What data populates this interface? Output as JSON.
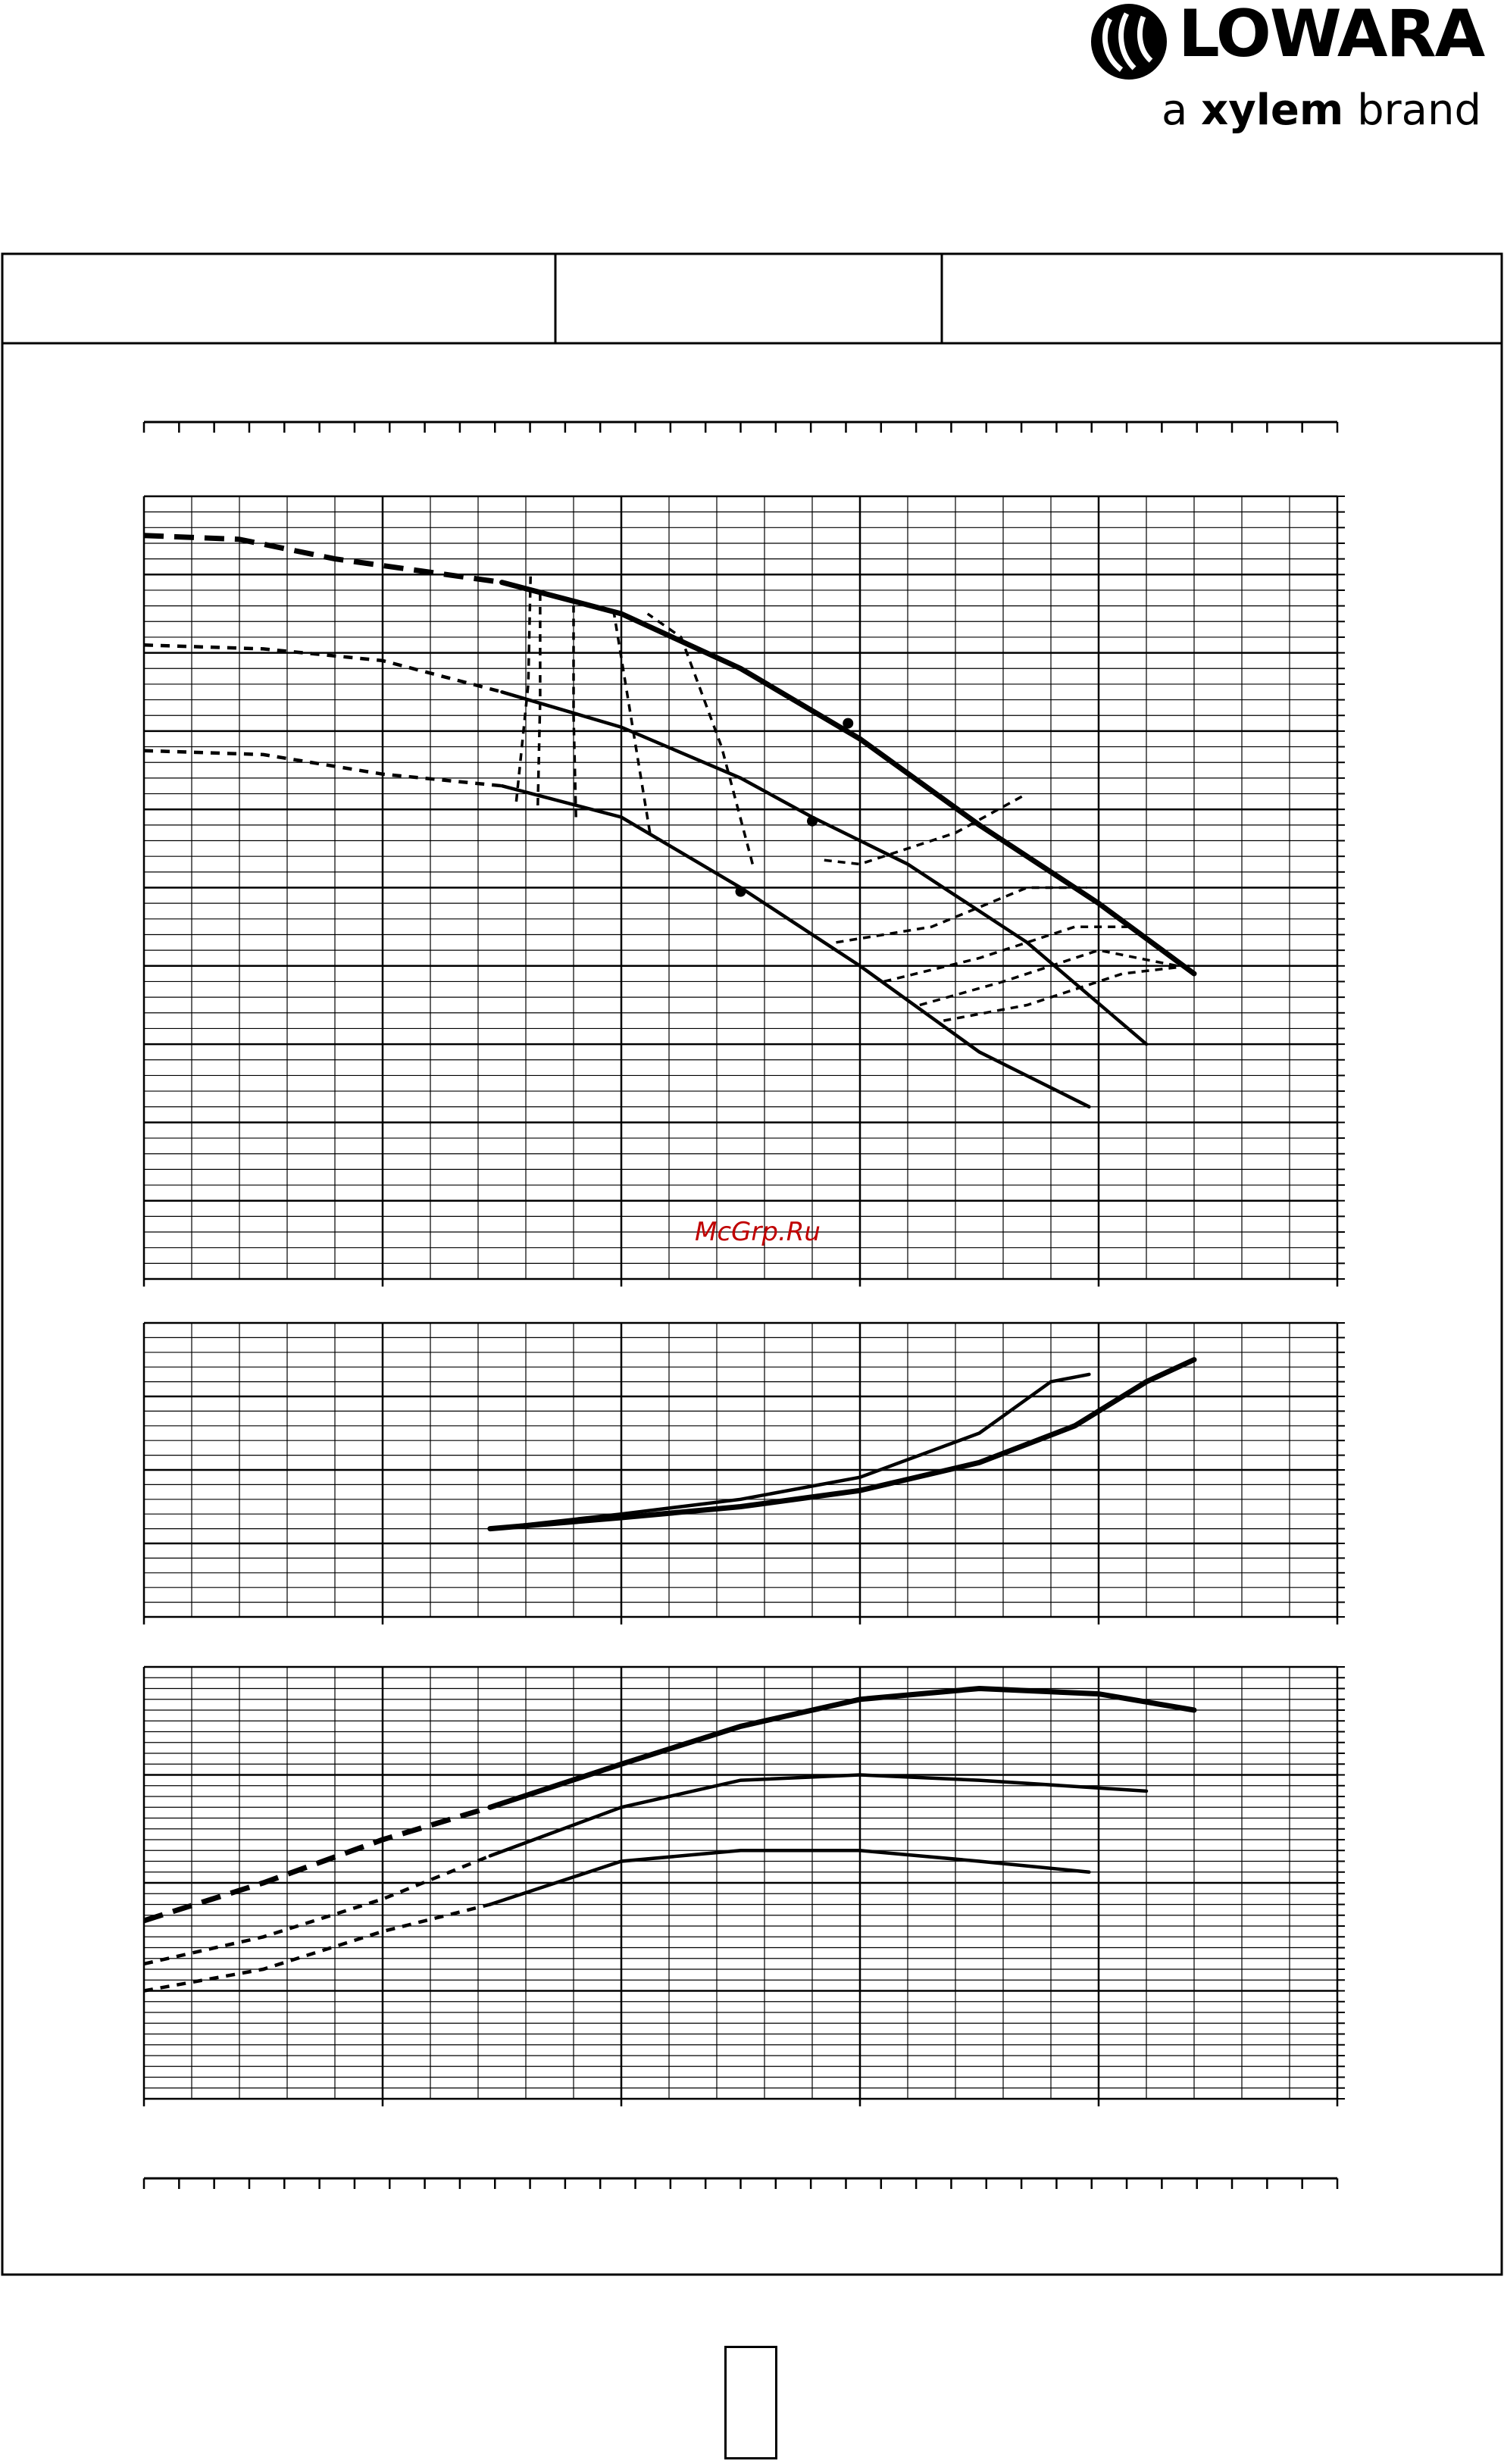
{
  "brand": {
    "name": "LOWARA",
    "tagline_prefix": "a",
    "tagline_brand": "xylem",
    "tagline_suffix": "brand",
    "logo_icon": "lowara-drop-icon"
  },
  "watermark": "McGrp.Ru",
  "header_cells": [
    "",
    "",
    ""
  ],
  "page_number": "",
  "colors": {
    "ink": "#000000",
    "watermark": "#c00000",
    "background": "#ffffff"
  },
  "chart_data": [
    {
      "type": "line",
      "panel": "head",
      "title": "",
      "xlabel": "",
      "ylabel": "",
      "xlim": [
        0,
        50
      ],
      "ylim": [
        0,
        10
      ],
      "grid": true,
      "series": [
        {
          "style": "thick",
          "dashed": [
            [
              0,
              9.5
            ],
            [
              4,
              9.45
            ],
            [
              8,
              9.2
            ],
            [
              15,
              8.9
            ]
          ],
          "solid": [
            [
              15,
              8.9
            ],
            [
              20,
              8.5
            ],
            [
              25,
              7.8
            ],
            [
              30,
              6.9
            ],
            [
              35,
              5.8
            ],
            [
              40,
              4.8
            ],
            [
              44,
              3.9
            ]
          ],
          "markers": [
            [
              29.5,
              7.1
            ]
          ]
        },
        {
          "style": "medium",
          "dashed": [
            [
              0,
              8.1
            ],
            [
              5,
              8.05
            ],
            [
              10,
              7.9
            ],
            [
              15,
              7.5
            ]
          ],
          "solid": [
            [
              15,
              7.5
            ],
            [
              20,
              7.05
            ],
            [
              25,
              6.4
            ],
            [
              28,
              5.9
            ],
            [
              32,
              5.3
            ],
            [
              37,
              4.3
            ],
            [
              42,
              3.0
            ]
          ],
          "markers": [
            [
              28,
              5.85
            ]
          ]
        },
        {
          "style": "medium",
          "dashed": [
            [
              0,
              6.75
            ],
            [
              5,
              6.7
            ],
            [
              10,
              6.45
            ],
            [
              15,
              6.3
            ]
          ],
          "solid": [
            [
              15,
              6.3
            ],
            [
              20,
              5.9
            ],
            [
              25,
              5.0
            ],
            [
              30,
              4.0
            ],
            [
              35,
              2.9
            ],
            [
              39.6,
              2.2
            ]
          ],
          "markers": [
            [
              25,
              4.95
            ]
          ]
        }
      ],
      "iso_lines": [
        [
          [
            15.6,
            6.1
          ],
          [
            16.1,
            7.6
          ],
          [
            16.2,
            9.0
          ]
        ],
        [
          [
            16.5,
            6.05
          ],
          [
            16.6,
            7.4
          ],
          [
            16.6,
            8.8
          ]
        ],
        [
          [
            18.1,
            5.9
          ],
          [
            18.0,
            7.2
          ],
          [
            18.0,
            8.6
          ]
        ],
        [
          [
            21.2,
            5.7
          ],
          [
            20.5,
            7.0
          ],
          [
            19.7,
            8.5
          ]
        ],
        [
          [
            25.5,
            5.3
          ],
          [
            24.2,
            6.8
          ],
          [
            22.5,
            8.2
          ],
          [
            21.1,
            8.5
          ]
        ],
        [
          [
            28.5,
            5.35
          ],
          [
            30,
            5.3
          ],
          [
            34,
            5.7
          ],
          [
            37,
            6.2
          ]
        ],
        [
          [
            29.0,
            4.3
          ],
          [
            33,
            4.5
          ],
          [
            37,
            5.0
          ],
          [
            39.5,
            5.0
          ]
        ],
        [
          [
            31.0,
            3.8
          ],
          [
            35,
            4.1
          ],
          [
            39,
            4.5
          ],
          [
            41.2,
            4.5
          ]
        ],
        [
          [
            32.5,
            3.5
          ],
          [
            36,
            3.8
          ],
          [
            40,
            4.2
          ],
          [
            43.3,
            4.0
          ]
        ],
        [
          [
            33.5,
            3.3
          ],
          [
            37,
            3.5
          ],
          [
            41,
            3.9
          ],
          [
            43.8,
            4.0
          ]
        ]
      ]
    },
    {
      "type": "line",
      "panel": "npsh",
      "title": "",
      "xlabel": "",
      "ylabel": "",
      "xlim": [
        0,
        50
      ],
      "ylim": [
        0,
        4
      ],
      "grid": true,
      "series": [
        {
          "style": "medium",
          "solid": [
            [
              14.5,
              1.2
            ],
            [
              20,
              1.4
            ],
            [
              25,
              1.6
            ],
            [
              30,
              1.9
            ],
            [
              35,
              2.5
            ],
            [
              38,
              3.2
            ],
            [
              39.6,
              3.3
            ]
          ]
        },
        {
          "style": "thick",
          "solid": [
            [
              14.5,
              1.2
            ],
            [
              20,
              1.35
            ],
            [
              25,
              1.5
            ],
            [
              30,
              1.72
            ],
            [
              35,
              2.1
            ],
            [
              39,
              2.6
            ],
            [
              42,
              3.2
            ],
            [
              44,
              3.5
            ]
          ]
        }
      ]
    },
    {
      "type": "line",
      "panel": "efficiency",
      "title": "",
      "xlabel": "",
      "ylabel": "",
      "xlim": [
        0,
        50
      ],
      "ylim": [
        0,
        4
      ],
      "grid": true,
      "series": [
        {
          "style": "thick",
          "dashed": [
            [
              0,
              1.65
            ],
            [
              5,
              2.0
            ],
            [
              10,
              2.4
            ],
            [
              14.5,
              2.7
            ]
          ],
          "solid": [
            [
              14.5,
              2.7
            ],
            [
              20,
              3.1
            ],
            [
              25,
              3.45
            ],
            [
              30,
              3.7
            ],
            [
              35,
              3.8
            ],
            [
              40,
              3.75
            ],
            [
              44,
              3.6
            ]
          ]
        },
        {
          "style": "medium",
          "dashed": [
            [
              0,
              1.25
            ],
            [
              5,
              1.5
            ],
            [
              10,
              1.85
            ],
            [
              14.5,
              2.25
            ]
          ],
          "solid": [
            [
              14.5,
              2.25
            ],
            [
              20,
              2.7
            ],
            [
              25,
              2.95
            ],
            [
              30,
              3.0
            ],
            [
              35,
              2.95
            ],
            [
              42,
              2.85
            ]
          ]
        },
        {
          "style": "medium",
          "dashed": [
            [
              0,
              1.0
            ],
            [
              5,
              1.2
            ],
            [
              10,
              1.55
            ],
            [
              14.5,
              1.8
            ]
          ],
          "solid": [
            [
              14.5,
              1.8
            ],
            [
              20,
              2.2
            ],
            [
              25,
              2.3
            ],
            [
              30,
              2.3
            ],
            [
              35,
              2.2
            ],
            [
              39.6,
              2.1
            ]
          ]
        }
      ]
    }
  ]
}
